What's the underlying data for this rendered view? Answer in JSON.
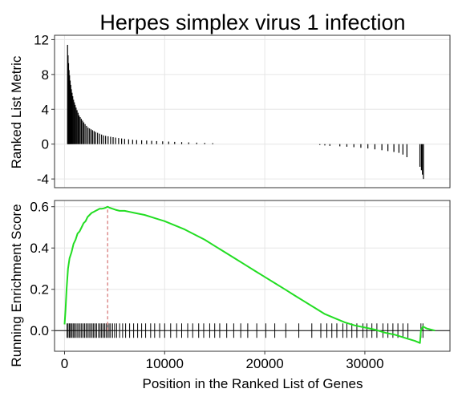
{
  "chart_data": [
    {
      "type": "bar",
      "title": "Herpes simplex virus 1 infection",
      "ylabel": "Ranked List Metric",
      "xlim": [
        -1000,
        38500
      ],
      "ylim": [
        -5,
        12.5
      ],
      "yticks": [
        -4,
        0,
        4,
        8,
        12
      ],
      "grid": true,
      "bar_color": "#000000",
      "x": [
        300,
        350,
        400,
        450,
        500,
        560,
        620,
        680,
        750,
        820,
        900,
        980,
        1060,
        1150,
        1250,
        1350,
        1450,
        1560,
        1680,
        1800,
        1920,
        2050,
        2200,
        2350,
        2500,
        2650,
        2800,
        2950,
        3100,
        3300,
        3500,
        3700,
        3900,
        4100,
        4350,
        4600,
        4850,
        5100,
        5400,
        5700,
        6000,
        6400,
        6800,
        7200,
        7700,
        8200,
        8700,
        9200,
        9800,
        10400,
        11000,
        11700,
        12400,
        13200,
        14000,
        14800,
        25500,
        26000,
        26500,
        27500,
        28200,
        28900,
        29600,
        30300,
        31000,
        31700,
        32300,
        32900,
        33400,
        33800,
        34200,
        35500,
        35650,
        35750,
        35850
      ],
      "y": [
        11.4,
        10.2,
        9.3,
        8.5,
        7.9,
        7.3,
        6.8,
        6.3,
        5.9,
        5.5,
        5.1,
        4.8,
        4.5,
        4.2,
        3.9,
        3.6,
        3.3,
        3.1,
        2.9,
        2.7,
        2.5,
        2.3,
        2.1,
        1.9,
        1.8,
        1.7,
        1.6,
        1.5,
        1.4,
        1.3,
        1.2,
        1.1,
        1.0,
        0.95,
        0.9,
        0.85,
        0.8,
        0.75,
        0.7,
        0.65,
        0.6,
        0.55,
        0.5,
        0.47,
        0.44,
        0.41,
        0.38,
        0.35,
        0.32,
        0.29,
        0.26,
        0.23,
        0.2,
        0.17,
        0.14,
        0.11,
        -0.1,
        -0.15,
        -0.2,
        -0.25,
        -0.3,
        -0.35,
        -0.42,
        -0.5,
        -0.6,
        -0.7,
        -0.8,
        -0.9,
        -1.0,
        -1.2,
        -1.5,
        -2.6,
        -3.0,
        -3.5,
        -4.0
      ]
    },
    {
      "type": "line",
      "xlabel": "Position in the Ranked List of Genes",
      "ylabel": "Running Enrichment Score",
      "xlim": [
        -1000,
        38500
      ],
      "ylim": [
        -0.1,
        0.63
      ],
      "xticks": [
        0,
        10000,
        20000,
        30000
      ],
      "yticks": [
        0.0,
        0.2,
        0.4,
        0.6
      ],
      "grid": true,
      "line_color": "#22dd22",
      "peak_marker": {
        "x": 4300,
        "color": "#cc5555"
      },
      "series": [
        {
          "x": [
            0,
            100,
            200,
            350,
            500,
            700,
            900,
            1100,
            1300,
            1500,
            1700,
            1900,
            2100,
            2300,
            2500,
            2700,
            2900,
            3100,
            3300,
            3500,
            3700,
            3900,
            4100,
            4300,
            4500,
            4800,
            5100,
            5500,
            6000,
            6500,
            7000,
            8000,
            9000,
            10000,
            11000,
            12000,
            13000,
            14000,
            15000,
            16000,
            17000,
            18000,
            19000,
            20000,
            21000,
            22000,
            23000,
            24000,
            25000,
            26000,
            27000,
            28000,
            29000,
            30000,
            31000,
            32000,
            33000,
            34000,
            35000,
            35500,
            35600,
            35800,
            36200,
            37000
          ],
          "y": [
            0.03,
            0.1,
            0.2,
            0.3,
            0.35,
            0.38,
            0.42,
            0.44,
            0.47,
            0.48,
            0.5,
            0.52,
            0.53,
            0.55,
            0.56,
            0.57,
            0.575,
            0.58,
            0.585,
            0.59,
            0.59,
            0.592,
            0.595,
            0.6,
            0.595,
            0.59,
            0.585,
            0.58,
            0.58,
            0.575,
            0.57,
            0.56,
            0.545,
            0.53,
            0.51,
            0.49,
            0.465,
            0.44,
            0.41,
            0.38,
            0.35,
            0.32,
            0.29,
            0.26,
            0.23,
            0.2,
            0.17,
            0.14,
            0.11,
            0.08,
            0.06,
            0.04,
            0.025,
            0.015,
            0.005,
            -0.01,
            -0.02,
            -0.035,
            -0.05,
            -0.06,
            0.0,
            0.02,
            0.01,
            0.0
          ]
        }
      ],
      "hits": [
        250,
        350,
        480,
        600,
        700,
        850,
        950,
        1100,
        1250,
        1400,
        1550,
        1700,
        1850,
        2000,
        2150,
        2300,
        2450,
        2600,
        2750,
        2900,
        3050,
        3200,
        3400,
        3550,
        3700,
        3850,
        4000,
        4150,
        4300,
        4450,
        4600,
        4800,
        5000,
        5200,
        5500,
        5800,
        6100,
        6500,
        6900,
        7300,
        7700,
        8100,
        8600,
        9000,
        9500,
        10000,
        10600,
        11200,
        11700,
        12300,
        12800,
        13400,
        13900,
        14500,
        15000,
        15500,
        16200,
        16900,
        17600,
        18300,
        19200,
        20100,
        21000,
        22100,
        23400,
        24700,
        25600,
        26200,
        26700,
        27200,
        27800,
        28200,
        28700,
        29200,
        29800,
        30200,
        30700,
        31200,
        31800,
        32300,
        32800,
        33300,
        33800,
        34300,
        35600,
        35800
      ]
    }
  ]
}
